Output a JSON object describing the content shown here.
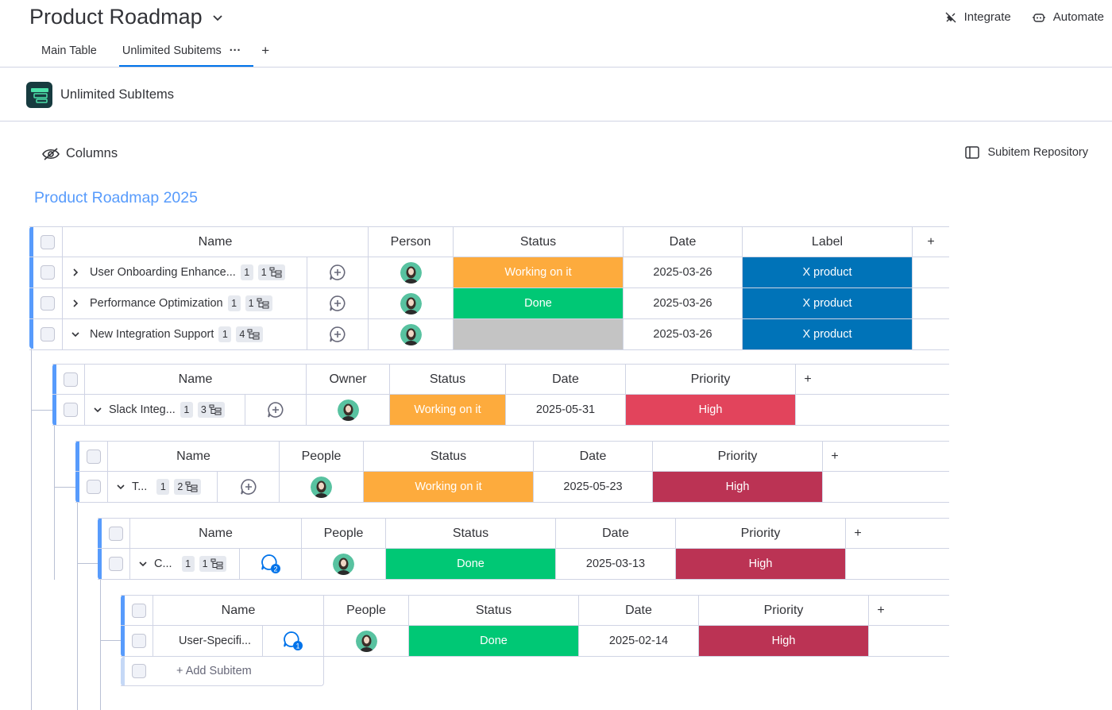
{
  "header": {
    "board_title": "Product Roadmap",
    "integrate_label": "Integrate",
    "automate_label": "Automate",
    "tabs": [
      {
        "label": "Main Table"
      },
      {
        "label": "Unlimited Subitems",
        "more": "···"
      }
    ],
    "tab_add": "+"
  },
  "app": {
    "name": "Unlimited SubItems"
  },
  "toolbar": {
    "columns_label": "Columns",
    "repository_label": "Subitem Repository"
  },
  "group": {
    "title": "Product Roadmap 2025"
  },
  "main_table": {
    "headers": [
      "Name",
      "Person",
      "Status",
      "Date",
      "Label"
    ],
    "add_column": "+",
    "rows": [
      {
        "name": "User Onboarding Enhance...",
        "updates": "1",
        "subitems": "1",
        "status": "Working on it",
        "date": "2025-03-26",
        "label": "X product"
      },
      {
        "name": "Performance Optimization",
        "updates": "1",
        "subitems": "1",
        "status": "Done",
        "date": "2025-03-26",
        "label": "X product"
      },
      {
        "name": "New Integration Support",
        "updates": "1",
        "subitems": "4",
        "status": "",
        "date": "2025-03-26",
        "label": "X product"
      }
    ]
  },
  "level1": {
    "headers": [
      "Name",
      "Owner",
      "Status",
      "Date",
      "Priority"
    ],
    "add_column": "+",
    "row": {
      "name": "Slack Integ...",
      "updates": "1",
      "subitems": "3",
      "status": "Working on it",
      "date": "2025-05-31",
      "priority": "High"
    }
  },
  "level2": {
    "headers": [
      "Name",
      "People",
      "Status",
      "Date",
      "Priority"
    ],
    "add_column": "+",
    "row": {
      "name": "T...",
      "updates": "1",
      "subitems": "2",
      "status": "Working on it",
      "date": "2025-05-23",
      "priority": "High"
    }
  },
  "level3": {
    "headers": [
      "Name",
      "People",
      "Status",
      "Date",
      "Priority"
    ],
    "add_column": "+",
    "row": {
      "name": "C...",
      "updates": "1",
      "subitems": "1",
      "update_count": "2",
      "status": "Done",
      "date": "2025-03-13",
      "priority": "High"
    }
  },
  "level4": {
    "headers": [
      "Name",
      "People",
      "Status",
      "Date",
      "Priority"
    ],
    "add_column": "+",
    "row": {
      "name": "User-Specifi...",
      "update_count": "1",
      "status": "Done",
      "date": "2025-02-14",
      "priority": "High"
    },
    "add_subitem": "+ Add Subitem"
  },
  "colors": {
    "working": "#fdab3d",
    "done": "#00c875",
    "empty": "#c4c4c4",
    "label": "#0073b8",
    "high_red": "#e2445c",
    "high_crimson": "#bb3354",
    "accent": "#579bfc"
  }
}
